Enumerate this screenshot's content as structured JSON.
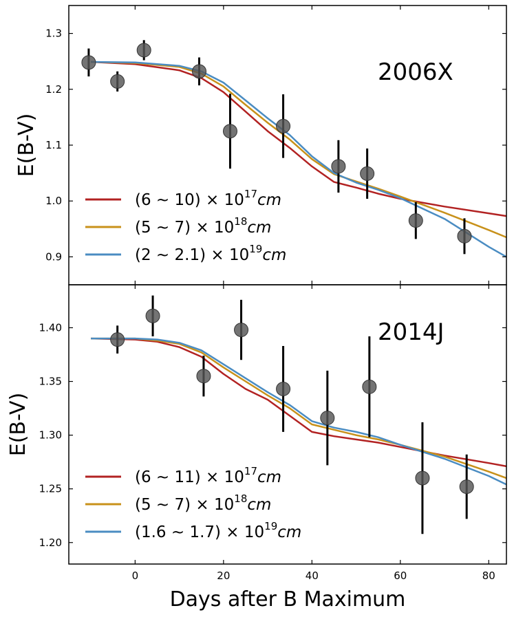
{
  "chart_data": [
    {
      "type": "scatter",
      "panel_label": "2006X",
      "xlabel": "",
      "ylabel": "E(B-V)",
      "xlim": [
        -15,
        84
      ],
      "ylim": [
        0.85,
        1.35
      ],
      "yticks": [
        0.9,
        1.0,
        1.1,
        1.2,
        1.3
      ],
      "ytick_labels": [
        "0.9",
        "1.0",
        "1.1",
        "1.2",
        "1.3"
      ],
      "points": [
        {
          "x": -10.5,
          "y": 1.248,
          "err": 0.025
        },
        {
          "x": -4,
          "y": 1.214,
          "err": 0.018
        },
        {
          "x": 2,
          "y": 1.27,
          "err": 0.018
        },
        {
          "x": 14.5,
          "y": 1.232,
          "err": 0.025
        },
        {
          "x": 21.5,
          "y": 1.125,
          "err": 0.067
        },
        {
          "x": 33.5,
          "y": 1.134,
          "err": 0.057
        },
        {
          "x": 46,
          "y": 1.062,
          "err": 0.047
        },
        {
          "x": 52.5,
          "y": 1.049,
          "err": 0.045
        },
        {
          "x": 63.5,
          "y": 0.965,
          "err": 0.033
        },
        {
          "x": 74.5,
          "y": 0.937,
          "err": 0.032
        }
      ],
      "series": [
        {
          "name": "(6 ~ 10) × 10^17 cm",
          "text_main": "(6 ~ 10) × 10",
          "exp": "17",
          "unit": "cm",
          "color": "#b22222",
          "x": [
            -10,
            0,
            10,
            15,
            20,
            25,
            30,
            35,
            40,
            45,
            50,
            55,
            60,
            70,
            80,
            84
          ],
          "y": [
            1.249,
            1.245,
            1.234,
            1.22,
            1.195,
            1.16,
            1.125,
            1.095,
            1.062,
            1.034,
            1.024,
            1.013,
            1.004,
            0.99,
            0.978,
            0.973
          ]
        },
        {
          "name": "(5 ~ 7) × 10^18 cm",
          "text_main": "(5 ~ 7) × 10",
          "exp": "18",
          "unit": "cm",
          "color": "#c8911a",
          "x": [
            -10,
            0,
            10,
            15,
            20,
            25,
            30,
            35,
            40,
            45,
            50,
            55,
            60,
            70,
            80,
            84
          ],
          "y": [
            1.249,
            1.247,
            1.24,
            1.228,
            1.205,
            1.172,
            1.14,
            1.11,
            1.075,
            1.048,
            1.035,
            1.022,
            1.008,
            0.979,
            0.948,
            0.935
          ]
        },
        {
          "name": "(2 ~ 2.1) × 10^19 cm",
          "text_main": "(2 ~ 2.1) × 10",
          "exp": "19",
          "unit": "cm",
          "color": "#4a8cc2",
          "x": [
            -10,
            0,
            10,
            15,
            20,
            25,
            30,
            35,
            40,
            45,
            50,
            55,
            60,
            70,
            80,
            84
          ],
          "y": [
            1.249,
            1.248,
            1.242,
            1.232,
            1.212,
            1.18,
            1.148,
            1.118,
            1.08,
            1.05,
            1.033,
            1.02,
            1.005,
            0.968,
            0.918,
            0.9
          ]
        }
      ]
    },
    {
      "type": "scatter",
      "panel_label": "2014J",
      "xlabel": "Days after B Maximum",
      "ylabel": "E(B-V)",
      "xlim": [
        -15,
        84
      ],
      "ylim": [
        1.18,
        1.44
      ],
      "xticks": [
        0,
        20,
        40,
        60,
        80
      ],
      "xtick_labels": [
        "0",
        "20",
        "40",
        "60",
        "80"
      ],
      "yticks": [
        1.2,
        1.25,
        1.3,
        1.35,
        1.4
      ],
      "ytick_labels": [
        "1.20",
        "1.25",
        "1.30",
        "1.35",
        "1.40"
      ],
      "points": [
        {
          "x": -4,
          "y": 1.389,
          "err": 0.013
        },
        {
          "x": 4,
          "y": 1.411,
          "err": 0.019
        },
        {
          "x": 15.5,
          "y": 1.355,
          "err": 0.019
        },
        {
          "x": 24,
          "y": 1.398,
          "err": 0.028
        },
        {
          "x": 33.5,
          "y": 1.343,
          "err": 0.04
        },
        {
          "x": 43.5,
          "y": 1.316,
          "err": 0.044
        },
        {
          "x": 53,
          "y": 1.345,
          "err": 0.047
        },
        {
          "x": 65,
          "y": 1.26,
          "err": 0.052
        },
        {
          "x": 75,
          "y": 1.252,
          "err": 0.03
        }
      ],
      "series": [
        {
          "name": "(6 ~ 11) × 10^17 cm",
          "text_main": "(6 ~ 11) × 10",
          "exp": "17",
          "unit": "cm",
          "color": "#b22222",
          "x": [
            -10,
            0,
            5,
            10,
            15,
            20,
            25,
            30,
            35,
            40,
            45,
            50,
            55,
            60,
            70,
            80,
            84
          ],
          "y": [
            1.39,
            1.389,
            1.387,
            1.382,
            1.373,
            1.357,
            1.343,
            1.333,
            1.318,
            1.303,
            1.299,
            1.296,
            1.293,
            1.289,
            1.281,
            1.274,
            1.271
          ]
        },
        {
          "name": "(5 ~ 7) × 10^18 cm",
          "text_main": "(5 ~ 7) × 10",
          "exp": "18",
          "unit": "cm",
          "color": "#c8911a",
          "x": [
            -10,
            0,
            5,
            10,
            15,
            20,
            25,
            30,
            35,
            40,
            45,
            50,
            55,
            60,
            70,
            80,
            84
          ],
          "y": [
            1.39,
            1.39,
            1.388,
            1.385,
            1.377,
            1.363,
            1.35,
            1.337,
            1.325,
            1.31,
            1.305,
            1.3,
            1.296,
            1.291,
            1.28,
            1.266,
            1.26
          ]
        },
        {
          "name": "(1.6 ~ 1.7) × 10^19 cm",
          "text_main": "(1.6 ~ 1.7) × 10",
          "exp": "19",
          "unit": "cm",
          "color": "#4a8cc2",
          "x": [
            -10,
            0,
            5,
            10,
            15,
            20,
            25,
            30,
            35,
            40,
            45,
            50,
            55,
            60,
            70,
            80,
            84
          ],
          "y": [
            1.39,
            1.39,
            1.389,
            1.386,
            1.379,
            1.366,
            1.353,
            1.34,
            1.328,
            1.313,
            1.307,
            1.303,
            1.298,
            1.291,
            1.278,
            1.262,
            1.254
          ]
        }
      ]
    }
  ]
}
